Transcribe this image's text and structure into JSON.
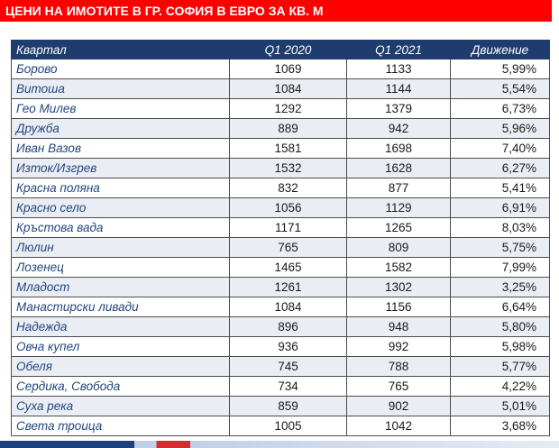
{
  "banner": {
    "title": "ЦЕНИ НА ИМОТИТЕ В ГР. СОФИЯ В ЕВРО ЗА КВ. М"
  },
  "colors": {
    "banner": "#ff0000",
    "header": "#1f3c6e",
    "district_text": "#24467e",
    "alt_row": "#eaeef4"
  },
  "chart_data": {
    "type": "table",
    "title": "ЦЕНИ НА ИМОТИТЕ В ГР. СОФИЯ В ЕВРО ЗА КВ. М",
    "columns": [
      "Квартал",
      "Q1 2020",
      "Q1 2021",
      "Движение"
    ],
    "rows": [
      [
        "Борово",
        "1069",
        "1133",
        "5,99%"
      ],
      [
        "Витоша",
        "1084",
        "1144",
        "5,54%"
      ],
      [
        "Гео Милев",
        "1292",
        "1379",
        "6,73%"
      ],
      [
        "Дружба",
        "889",
        "942",
        "5,96%"
      ],
      [
        "Иван Вазов",
        "1581",
        "1698",
        "7,40%"
      ],
      [
        "Изток/Изгрев",
        "1532",
        "1628",
        "6,27%"
      ],
      [
        "Красна поляна",
        "832",
        "877",
        "5,41%"
      ],
      [
        "Красно село",
        "1056",
        "1129",
        "6,91%"
      ],
      [
        "Кръстова вада",
        "1171",
        "1265",
        "8,03%"
      ],
      [
        "Люлин",
        "765",
        "809",
        "5,75%"
      ],
      [
        "Лозенец",
        "1465",
        "1582",
        "7,99%"
      ],
      [
        "Младост",
        "1261",
        "1302",
        "3,25%"
      ],
      [
        "Манастирски ливади",
        "1084",
        "1156",
        "6,64%"
      ],
      [
        "Надежда",
        "896",
        "948",
        "5,80%"
      ],
      [
        "Овча купел",
        "936",
        "992",
        "5,98%"
      ],
      [
        "Обеля",
        "745",
        "788",
        "5,77%"
      ],
      [
        "Сердика, Свобода",
        "734",
        "765",
        "4,22%"
      ],
      [
        "Суха река",
        "859",
        "902",
        "5,01%"
      ],
      [
        "Света троица",
        "1005",
        "1042",
        "3,68%"
      ]
    ]
  }
}
